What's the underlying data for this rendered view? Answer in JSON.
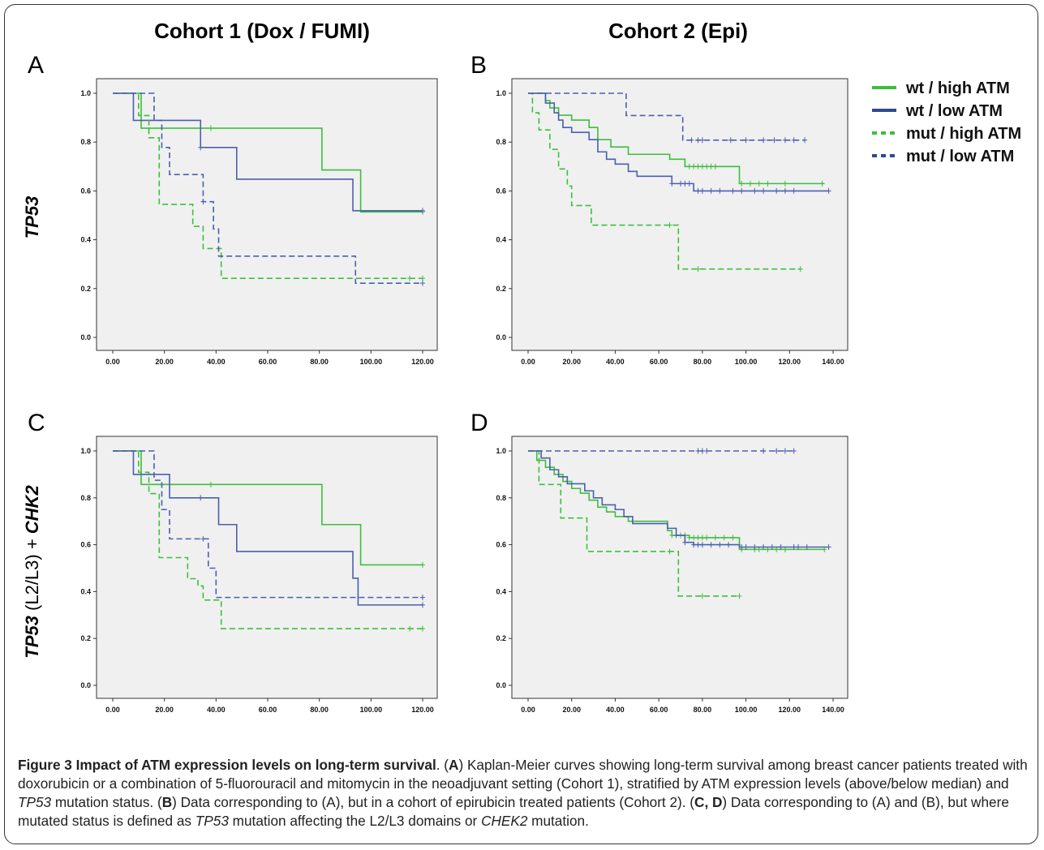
{
  "header": {
    "cohort1_title": "Cohort 1 (Dox / FUMI)",
    "cohort2_title": "Cohort 2 (Epi)"
  },
  "row_labels": {
    "row1_gene": "TP53",
    "row2_gene": "TP53",
    "row2_mid": " (L2/L3) + ",
    "row2_gene2": "CHK2"
  },
  "legend": {
    "items": [
      {
        "label": "wt / high ATM",
        "color": "#3cbf3c",
        "dash": false
      },
      {
        "label": "wt / low ATM",
        "color": "#2e4a8f",
        "dash": false
      },
      {
        "label": "mut / high ATM",
        "color": "#3cbf3c",
        "dash": true
      },
      {
        "label": "mut / low ATM",
        "color": "#2e4a8f",
        "dash": true
      }
    ]
  },
  "colors": {
    "wt_high": "#3cbf3c",
    "wt_low": "#4a5fb0",
    "mut_high": "#3cbf3c",
    "mut_low": "#4a5fb0",
    "plot_bg": "#f0f0f0"
  },
  "chart_data": [
    {
      "panel": "A",
      "type": "line",
      "step": true,
      "xlim": [
        0,
        120
      ],
      "ylim": [
        0,
        1
      ],
      "x_ticks": [
        "0.00",
        "20.00",
        "40.00",
        "60.00",
        "80.00",
        "100.00",
        "120.00"
      ],
      "y_ticks": [
        "0.0",
        "0.2",
        "0.4",
        "0.6",
        "0.8",
        "1.0"
      ],
      "series": [
        {
          "name": "wt / high ATM",
          "x": [
            0,
            11,
            81,
            96,
            120
          ],
          "y": [
            1.0,
            0.857,
            0.686,
            0.514,
            0.514
          ],
          "censor_x": [
            38,
            120
          ]
        },
        {
          "name": "wt / low ATM",
          "x": [
            0,
            8,
            22,
            34,
            48,
            93,
            120
          ],
          "y": [
            1.0,
            0.889,
            0.889,
            0.778,
            0.648,
            0.519,
            0.519
          ],
          "censor_x": [
            34,
            120
          ]
        },
        {
          "name": "mut / high ATM",
          "x": [
            0,
            10,
            14,
            18,
            31,
            35,
            42,
            120
          ],
          "y": [
            1.0,
            0.909,
            0.818,
            0.545,
            0.455,
            0.364,
            0.242,
            0.242
          ],
          "censor_x": [
            115,
            120
          ]
        },
        {
          "name": "mut / low ATM",
          "x": [
            0,
            16,
            19,
            22,
            35,
            39,
            41,
            94,
            120
          ],
          "y": [
            1.0,
            0.889,
            0.778,
            0.667,
            0.556,
            0.444,
            0.333,
            0.222,
            0.222
          ],
          "censor_x": [
            35,
            120
          ]
        }
      ]
    },
    {
      "panel": "B",
      "type": "line",
      "step": true,
      "xlim": [
        0,
        140
      ],
      "ylim": [
        0,
        1
      ],
      "x_ticks": [
        "0.00",
        "20.00",
        "40.00",
        "60.00",
        "80.00",
        "100.00",
        "120.00",
        "140.00"
      ],
      "y_ticks": [
        "0.0",
        "0.2",
        "0.4",
        "0.6",
        "0.8",
        "1.0"
      ],
      "series": [
        {
          "name": "wt / high ATM",
          "x": [
            0,
            8,
            10,
            14,
            20,
            28,
            32,
            38,
            46,
            65,
            72,
            97,
            136
          ],
          "y": [
            1.0,
            0.97,
            0.94,
            0.91,
            0.89,
            0.86,
            0.81,
            0.78,
            0.75,
            0.73,
            0.7,
            0.63,
            0.63
          ],
          "censor_x": [
            74,
            76,
            78,
            80,
            82,
            84,
            86,
            98,
            102,
            106,
            110,
            118,
            135
          ]
        },
        {
          "name": "wt / low ATM",
          "x": [
            0,
            8,
            12,
            14,
            16,
            20,
            28,
            32,
            36,
            40,
            46,
            50,
            58,
            66,
            76,
            138
          ],
          "y": [
            1.0,
            0.96,
            0.92,
            0.89,
            0.86,
            0.84,
            0.81,
            0.76,
            0.73,
            0.71,
            0.68,
            0.66,
            0.66,
            0.63,
            0.6,
            0.6
          ],
          "censor_x": [
            66,
            70,
            72,
            74,
            78,
            80,
            84,
            88,
            94,
            98,
            104,
            108,
            114,
            118,
            122,
            138
          ]
        },
        {
          "name": "mut / high ATM",
          "x": [
            0,
            2,
            5,
            10,
            14,
            18,
            20,
            29,
            67,
            69,
            125
          ],
          "y": [
            1.0,
            0.92,
            0.85,
            0.77,
            0.69,
            0.62,
            0.54,
            0.46,
            0.46,
            0.28,
            0.28
          ],
          "censor_x": [
            65,
            78,
            125
          ]
        },
        {
          "name": "mut / low ATM",
          "x": [
            0,
            45,
            71,
            127
          ],
          "y": [
            1.0,
            0.909,
            0.808,
            0.808
          ],
          "censor_x": [
            75,
            78,
            80,
            93,
            100,
            108,
            113,
            118,
            122,
            127
          ]
        }
      ]
    },
    {
      "panel": "C",
      "type": "line",
      "step": true,
      "xlim": [
        0,
        120
      ],
      "ylim": [
        0,
        1
      ],
      "x_ticks": [
        "0.00",
        "20.00",
        "40.00",
        "60.00",
        "80.00",
        "100.00",
        "120.00"
      ],
      "y_ticks": [
        "0.0",
        "0.2",
        "0.4",
        "0.6",
        "0.8",
        "1.0"
      ],
      "series": [
        {
          "name": "wt / high ATM",
          "x": [
            0,
            11,
            81,
            96,
            120
          ],
          "y": [
            1.0,
            0.857,
            0.686,
            0.514,
            0.514
          ],
          "censor_x": [
            38,
            120
          ]
        },
        {
          "name": "wt / low ATM",
          "x": [
            0,
            8,
            22,
            41,
            48,
            93,
            95,
            120
          ],
          "y": [
            1.0,
            0.9,
            0.8,
            0.686,
            0.571,
            0.457,
            0.343,
            0.343
          ],
          "censor_x": [
            34,
            120
          ]
        },
        {
          "name": "mut / high ATM",
          "x": [
            0,
            10,
            14,
            18,
            29,
            33,
            35,
            42,
            120
          ],
          "y": [
            1.0,
            0.909,
            0.818,
            0.545,
            0.455,
            0.424,
            0.364,
            0.242,
            0.242
          ],
          "censor_x": [
            115,
            120
          ]
        },
        {
          "name": "mut / low ATM",
          "x": [
            0,
            16,
            19,
            22,
            37,
            40,
            120
          ],
          "y": [
            1.0,
            0.875,
            0.75,
            0.625,
            0.5,
            0.375,
            0.375
          ],
          "censor_x": [
            35,
            120
          ]
        }
      ]
    },
    {
      "panel": "D",
      "type": "line",
      "step": true,
      "xlim": [
        0,
        140
      ],
      "ylim": [
        0,
        1
      ],
      "x_ticks": [
        "0.00",
        "20.00",
        "40.00",
        "60.00",
        "80.00",
        "100.00",
        "120.00",
        "140.00"
      ],
      "y_ticks": [
        "0.0",
        "0.2",
        "0.4",
        "0.6",
        "0.8",
        "1.0"
      ],
      "series": [
        {
          "name": "wt / high ATM",
          "x": [
            0,
            4,
            8,
            12,
            16,
            20,
            24,
            28,
            32,
            36,
            40,
            46,
            64,
            66,
            74,
            97,
            136
          ],
          "y": [
            1.0,
            0.96,
            0.93,
            0.9,
            0.87,
            0.84,
            0.82,
            0.79,
            0.76,
            0.74,
            0.72,
            0.7,
            0.66,
            0.64,
            0.63,
            0.58,
            0.58
          ],
          "censor_x": [
            66,
            70,
            72,
            74,
            76,
            78,
            80,
            82,
            86,
            90,
            94,
            98,
            104,
            106,
            110,
            114,
            118,
            136
          ]
        },
        {
          "name": "wt / low ATM",
          "x": [
            0,
            6,
            10,
            14,
            18,
            26,
            30,
            34,
            40,
            44,
            48,
            64,
            68,
            72,
            76,
            97,
            138
          ],
          "y": [
            1.0,
            0.97,
            0.92,
            0.89,
            0.86,
            0.83,
            0.8,
            0.77,
            0.75,
            0.72,
            0.69,
            0.67,
            0.64,
            0.61,
            0.6,
            0.59,
            0.59
          ],
          "censor_x": [
            68,
            72,
            76,
            78,
            80,
            84,
            88,
            92,
            98,
            100,
            104,
            108,
            112,
            116,
            122,
            124,
            128,
            138
          ]
        },
        {
          "name": "mut / high ATM",
          "x": [
            0,
            5,
            15,
            27,
            69,
            97
          ],
          "y": [
            1.0,
            0.857,
            0.714,
            0.571,
            0.381,
            0.381
          ],
          "censor_x": [
            65,
            80,
            97
          ]
        },
        {
          "name": "mut / low ATM",
          "x": [
            0,
            122
          ],
          "y": [
            1.0,
            1.0
          ],
          "censor_x": [
            78,
            80,
            82,
            108,
            114,
            118,
            122
          ]
        }
      ]
    }
  ],
  "caption": {
    "title": "Figure 3 Impact of ATM expression levels on long-term survival",
    "s1": ". (",
    "A1": "A",
    "s2": ") Kaplan-Meier curves showing long-term survival among breast cancer patients treated with doxorubicin or a combination of 5-fluorouracil and mitomycin in the neoadjuvant setting (Cohort 1), stratified by ATM expression levels (above/below median) and ",
    "tp53_1": "TP53",
    "s3": " mutation status. (",
    "B1": "B",
    "s4": ") Data corresponding to (A), but in a cohort of epirubicin treated patients (Cohort 2). (",
    "CD": "C, D",
    "s5": ") Data corresponding to (A) and (B), but where mutated status is defined as ",
    "tp53_2": "TP53",
    "s6": " mutation affecting the L2/L3 domains or ",
    "chek2": "CHEK2",
    "s7": " mutation."
  }
}
